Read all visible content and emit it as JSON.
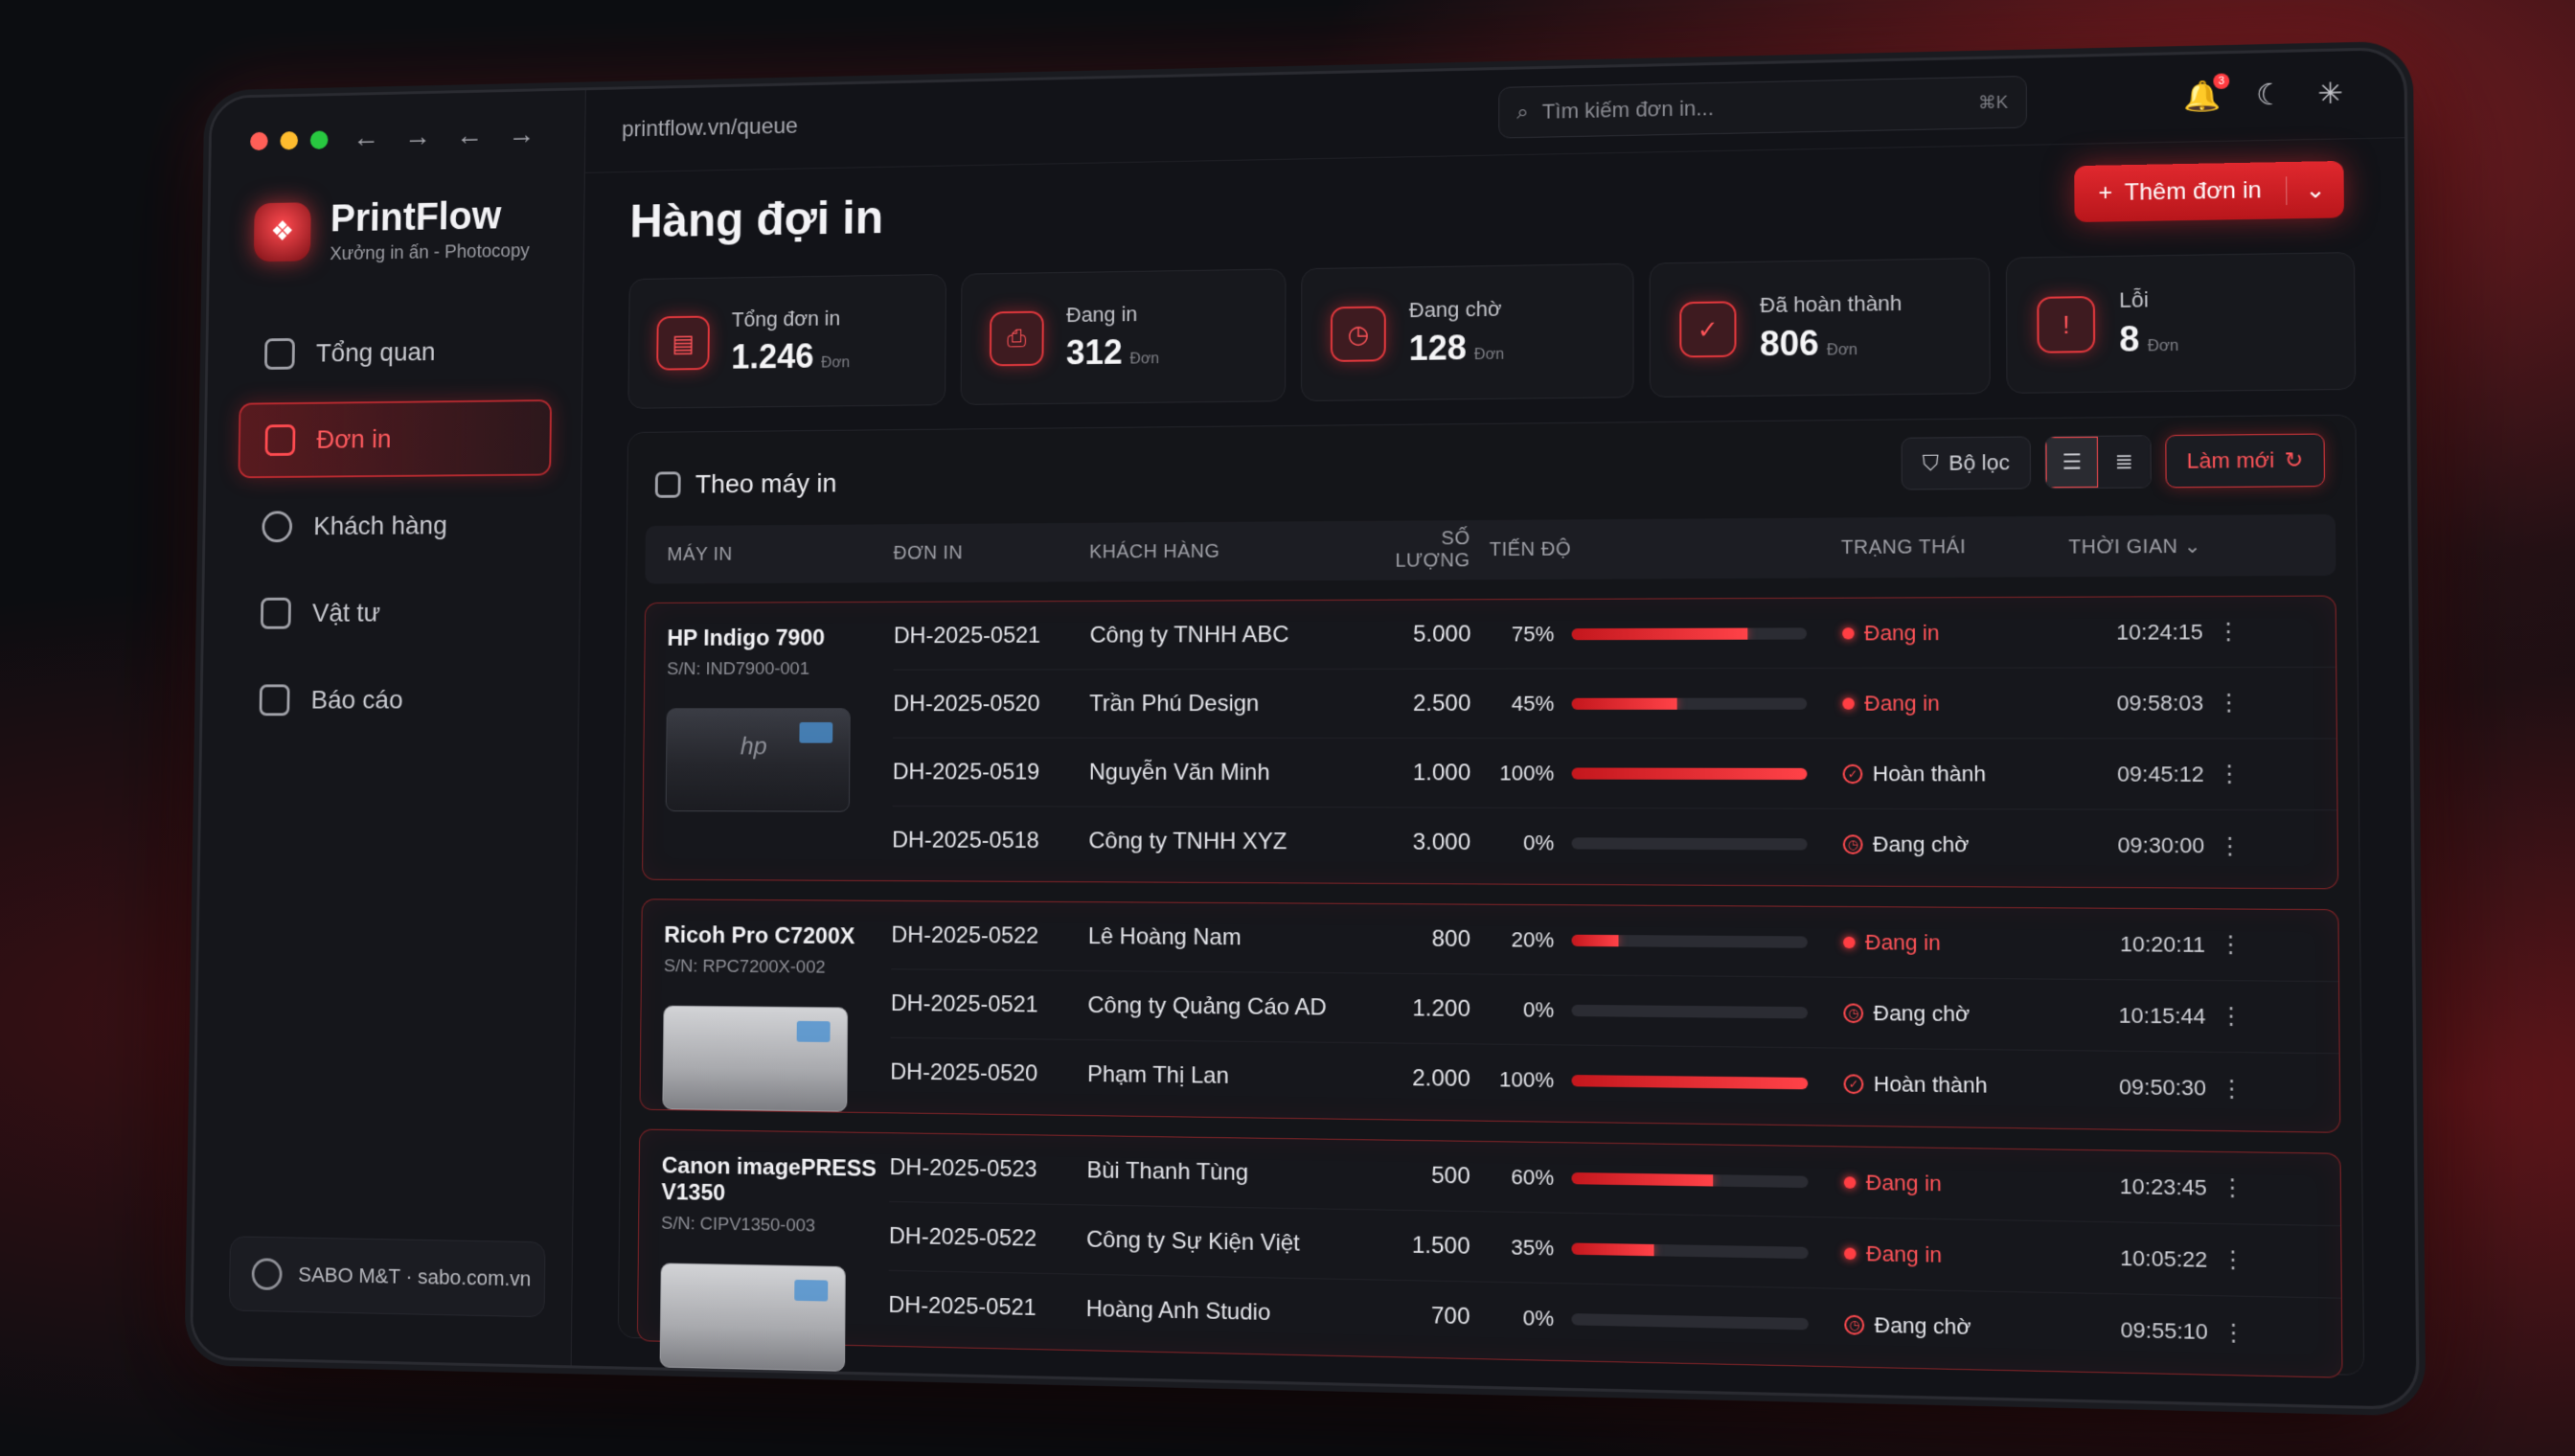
{
  "browser": {
    "url": "printflow.vn/queue",
    "search_placeholder": "Tìm kiếm đơn in...",
    "search_shortcut": "⌘K",
    "notification_count": "3"
  },
  "brand": {
    "name": "PrintFlow",
    "tagline": "Xưởng in ấn - Photocopy"
  },
  "sidebar": {
    "items": [
      {
        "label": "Tổng quan",
        "icon": "home-icon"
      },
      {
        "label": "Đơn in",
        "icon": "document-icon"
      },
      {
        "label": "Khách hàng",
        "icon": "users-icon"
      },
      {
        "label": "Vật tư",
        "icon": "box-icon"
      },
      {
        "label": "Báo cáo",
        "icon": "report-icon"
      }
    ],
    "active_index": 1,
    "footer": "SABO M&T · sabo.com.vn"
  },
  "page": {
    "title": "Hàng đợi in",
    "add_button": "Thêm đơn in"
  },
  "stats": [
    {
      "label": "Tổng đơn in",
      "value": "1.246",
      "unit": "Đơn"
    },
    {
      "label": "Đang in",
      "value": "312",
      "unit": "Đơn"
    },
    {
      "label": "Đang chờ",
      "value": "128",
      "unit": "Đơn"
    },
    {
      "label": "Đã hoàn thành",
      "value": "806",
      "unit": "Đơn"
    },
    {
      "label": "Lỗi",
      "value": "8",
      "unit": "Đơn"
    }
  ],
  "panel": {
    "title": "Theo máy in",
    "filter_label": "Bộ lọc",
    "refresh_label": "Làm mới"
  },
  "table": {
    "headers": {
      "printer": "MÁY IN",
      "order": "ĐƠN IN",
      "customer": "KHÁCH HÀNG",
      "quantity": "SỐ LƯỢNG",
      "progress": "TIẾN ĐỘ",
      "status": "TRẠNG THÁI",
      "time": "THỜI GIAN"
    },
    "groups": [
      {
        "printer": "HP Indigo 7900",
        "serial": "S/N: IND7900-001",
        "rows": [
          {
            "order": "DH-2025-0521",
            "customer": "Công ty TNHH ABC",
            "quantity": "5.000",
            "progress": 75,
            "progress_label": "75%",
            "status": "Đang in",
            "status_type": "printing",
            "time": "10:24:15"
          },
          {
            "order": "DH-2025-0520",
            "customer": "Trần Phú Design",
            "quantity": "2.500",
            "progress": 45,
            "progress_label": "45%",
            "status": "Đang in",
            "status_type": "printing",
            "time": "09:58:03"
          },
          {
            "order": "DH-2025-0519",
            "customer": "Nguyễn Văn Minh",
            "quantity": "1.000",
            "progress": 100,
            "progress_label": "100%",
            "status": "Hoàn thành",
            "status_type": "done",
            "time": "09:45:12"
          },
          {
            "order": "DH-2025-0518",
            "customer": "Công ty TNHH XYZ",
            "quantity": "3.000",
            "progress": 0,
            "progress_label": "0%",
            "status": "Đang chờ",
            "status_type": "waiting",
            "time": "09:30:00"
          }
        ]
      },
      {
        "printer": "Ricoh Pro C7200X",
        "serial": "S/N: RPC7200X-002",
        "rows": [
          {
            "order": "DH-2025-0522",
            "customer": "Lê Hoàng Nam",
            "quantity": "800",
            "progress": 20,
            "progress_label": "20%",
            "status": "Đang in",
            "status_type": "printing",
            "time": "10:20:11"
          },
          {
            "order": "DH-2025-0521",
            "customer": "Công ty Quảng Cáo AD",
            "quantity": "1.200",
            "progress": 0,
            "progress_label": "0%",
            "status": "Đang chờ",
            "status_type": "waiting",
            "time": "10:15:44"
          },
          {
            "order": "DH-2025-0520",
            "customer": "Phạm Thị Lan",
            "quantity": "2.000",
            "progress": 100,
            "progress_label": "100%",
            "status": "Hoàn thành",
            "status_type": "done",
            "time": "09:50:30"
          }
        ]
      },
      {
        "printer": "Canon imagePRESS V1350",
        "serial": "S/N: CIPV1350-003",
        "rows": [
          {
            "order": "DH-2025-0523",
            "customer": "Bùi Thanh Tùng",
            "quantity": "500",
            "progress": 60,
            "progress_label": "60%",
            "status": "Đang in",
            "status_type": "printing",
            "time": "10:23:45"
          },
          {
            "order": "DH-2025-0522",
            "customer": "Công ty Sự Kiện Việt",
            "quantity": "1.500",
            "progress": 35,
            "progress_label": "35%",
            "status": "Đang in",
            "status_type": "printing",
            "time": "10:05:22"
          },
          {
            "order": "DH-2025-0521",
            "customer": "Hoàng Anh Studio",
            "quantity": "700",
            "progress": 0,
            "progress_label": "0%",
            "status": "Đang chờ",
            "status_type": "waiting",
            "time": "09:55:10"
          }
        ]
      }
    ]
  },
  "colors": {
    "accent": "#e0282e",
    "background": "#121318",
    "progress_track": "#2b2c33"
  }
}
